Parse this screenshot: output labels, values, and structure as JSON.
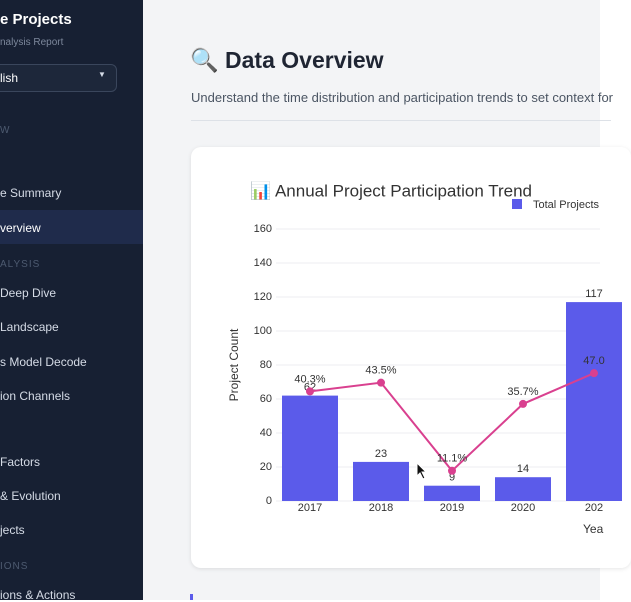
{
  "sidebar": {
    "title": "e Projects",
    "subtitle": "nalysis Report",
    "language": "lish",
    "groups": [
      {
        "heading": "W",
        "items": [
          "e Summary",
          "verview"
        ]
      },
      {
        "heading": "ALYSIS",
        "items": [
          "Deep Dive",
          "Landscape",
          "s Model Decode",
          "ion Channels"
        ]
      },
      {
        "items": [
          "Factors",
          "& Evolution",
          "jects"
        ]
      },
      {
        "heading": "IONS",
        "items": [
          "ions & Actions"
        ]
      }
    ]
  },
  "main": {
    "title": "🔍 Data Overview",
    "subtitle": "Understand the time distribution and participation trends to set context for"
  },
  "chart_data": {
    "type": "bar",
    "title": "📊 Annual Project Participation Trend",
    "x_label": "Yea",
    "y_label": "Project Count",
    "categories": [
      "2017",
      "2018",
      "2019",
      "2020",
      "202"
    ],
    "series": [
      {
        "name": "Total Projects",
        "color": "#5b5bea",
        "values": [
          62,
          23,
          9,
          14,
          117
        ]
      },
      {
        "type": "line",
        "axis": "y2",
        "color": "#d9408f",
        "values": [
          40.3,
          43.5,
          11.1,
          35.7,
          47.0
        ],
        "value_labels": [
          "40.3%",
          "43.5%",
          "11.1%",
          "35.7%",
          "47.0"
        ]
      }
    ],
    "ylim": [
      0,
      160
    ],
    "yticks": [
      0,
      20,
      40,
      60,
      80,
      100,
      120,
      140,
      160
    ],
    "y2lim": [
      0,
      100
    ],
    "grid": true
  }
}
